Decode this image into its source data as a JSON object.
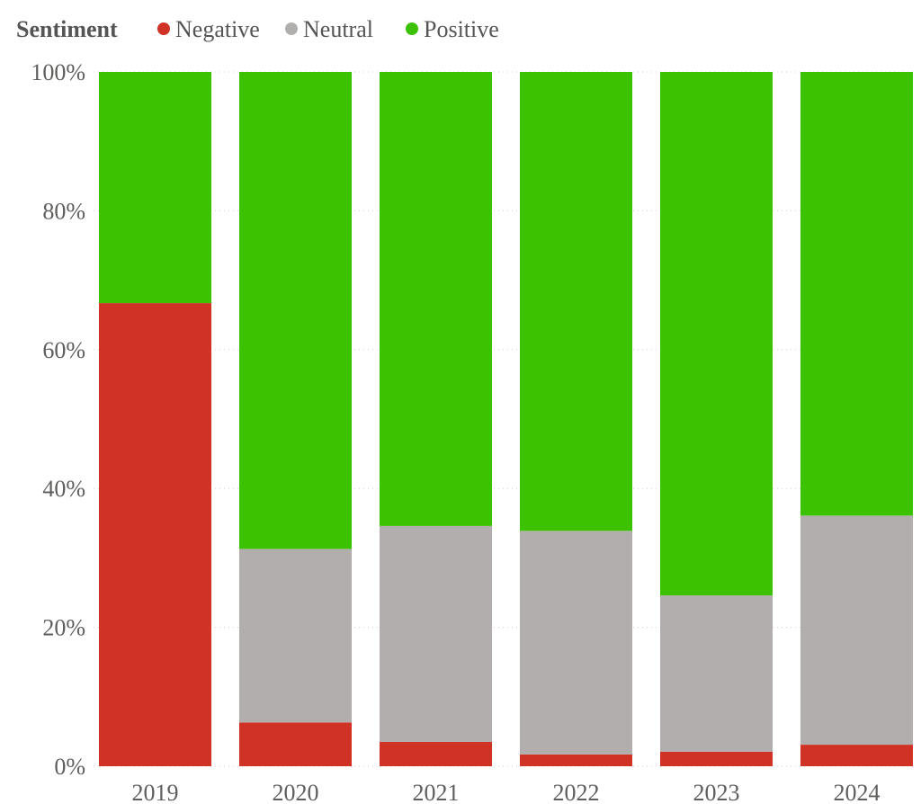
{
  "chart_data": {
    "type": "bar",
    "stacked": "percent",
    "title": "",
    "legend": {
      "title": "Sentiment",
      "placement": "top-left"
    },
    "categories": [
      "2019",
      "2020",
      "2021",
      "2022",
      "2023",
      "2024"
    ],
    "series": [
      {
        "name": "Negative",
        "color": "#D13226",
        "values": [
          66.7,
          6.3,
          3.5,
          1.7,
          2.1,
          3.1
        ]
      },
      {
        "name": "Neutral",
        "color": "#B3AEAE",
        "values": [
          0,
          25.0,
          31.1,
          32.2,
          22.5,
          33.0
        ]
      },
      {
        "name": "Positive",
        "color": "#3CC200",
        "values": [
          33.3,
          68.7,
          65.4,
          66.1,
          75.4,
          63.9
        ]
      }
    ],
    "yticks": [
      "0%",
      "20%",
      "40%",
      "60%",
      "80%",
      "100%"
    ],
    "ylim": [
      0,
      100
    ],
    "xlabel": "",
    "ylabel": "",
    "grid": true
  }
}
